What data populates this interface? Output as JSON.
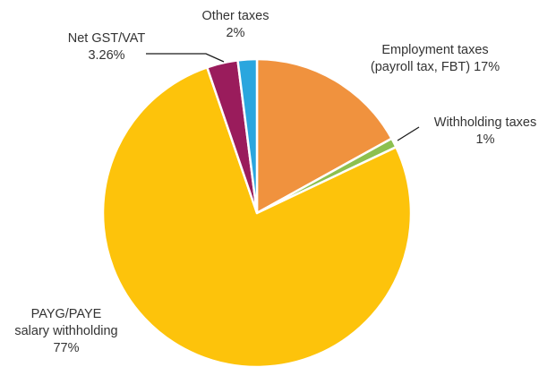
{
  "chart_data": {
    "type": "pie",
    "title": "",
    "start": "12 o'clock",
    "direction": "clockwise",
    "slices": [
      {
        "name": "Employment taxes (payroll tax, FBT)",
        "value": 17,
        "label_lines": [
          "Employment taxes",
          "(payroll tax, FBT) 17%"
        ],
        "color": "#F0923E"
      },
      {
        "name": "Withholding taxes",
        "value": 1,
        "label_lines": [
          "Withholding taxes",
          "1%"
        ],
        "color": "#8DC04F"
      },
      {
        "name": "PAYG/PAYE salary withholding",
        "value": 77,
        "label_lines": [
          "PAYG/PAYE",
          "salary withholding",
          "77%"
        ],
        "color": "#FDC30B"
      },
      {
        "name": "Net GST/VAT",
        "value": 3.26,
        "label_lines": [
          "Net GST/VAT",
          "3.26%"
        ],
        "color": "#9A1C5C"
      },
      {
        "name": "Other taxes",
        "value": 2,
        "label_lines": [
          "Other taxes",
          "2%"
        ],
        "color": "#2AA6DE"
      }
    ]
  }
}
